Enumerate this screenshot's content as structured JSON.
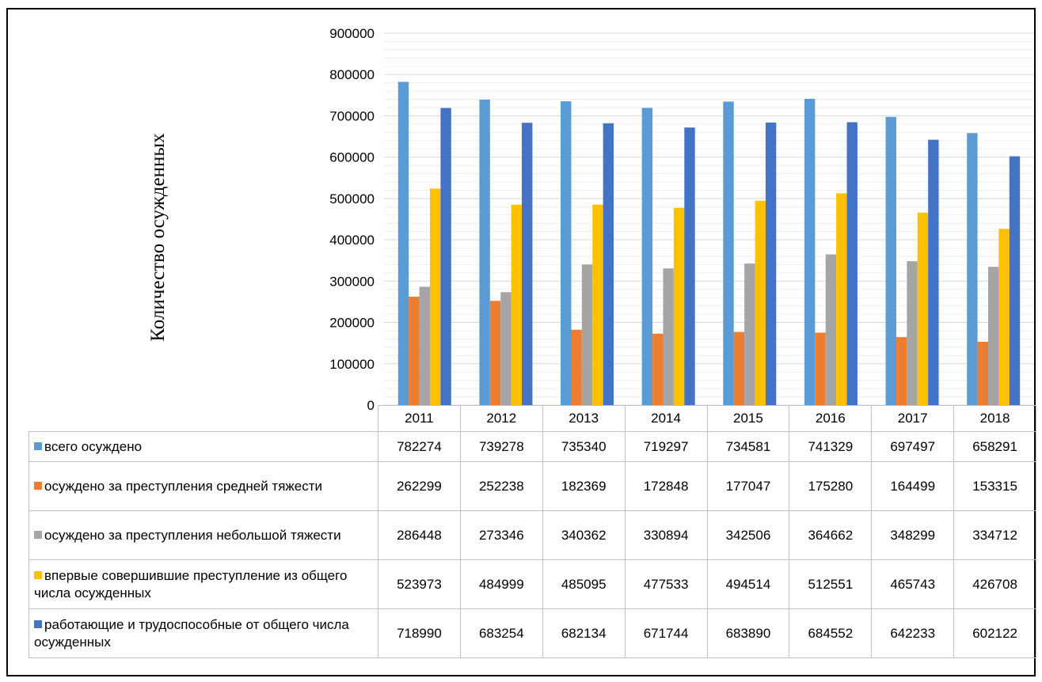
{
  "chart_data": {
    "type": "bar",
    "ylabel": "Количество осужденных",
    "ylim": [
      0,
      900000
    ],
    "yticks": [
      0,
      100000,
      200000,
      300000,
      400000,
      500000,
      600000,
      700000,
      800000,
      900000
    ],
    "grid": true,
    "legend": "data-table",
    "categories": [
      "2011",
      "2012",
      "2013",
      "2014",
      "2015",
      "2016",
      "2017",
      "2018"
    ],
    "series": [
      {
        "name": "всего осуждено",
        "color": "#5B9BD5",
        "values": [
          782274,
          739278,
          735340,
          719297,
          734581,
          741329,
          697497,
          658291
        ]
      },
      {
        "name": "осуждено за преступления средней тяжести",
        "color": "#ED7D31",
        "values": [
          262299,
          252238,
          182369,
          172848,
          177047,
          175280,
          164499,
          153315
        ]
      },
      {
        "name": "осуждено за преступления небольшой тяжести",
        "color": "#A5A5A5",
        "values": [
          286448,
          273346,
          340362,
          330894,
          342506,
          364662,
          348299,
          334712
        ]
      },
      {
        "name": "впервые совершившие преступление из общего числа осужденных",
        "color": "#FFC000",
        "values": [
          523973,
          484999,
          485095,
          477533,
          494514,
          512551,
          465743,
          426708
        ]
      },
      {
        "name": "работающие и трудоспособные от общего числа осужденных",
        "color": "#4472C4",
        "values": [
          718990,
          683254,
          682134,
          671744,
          683890,
          684552,
          642233,
          602122
        ]
      }
    ]
  }
}
